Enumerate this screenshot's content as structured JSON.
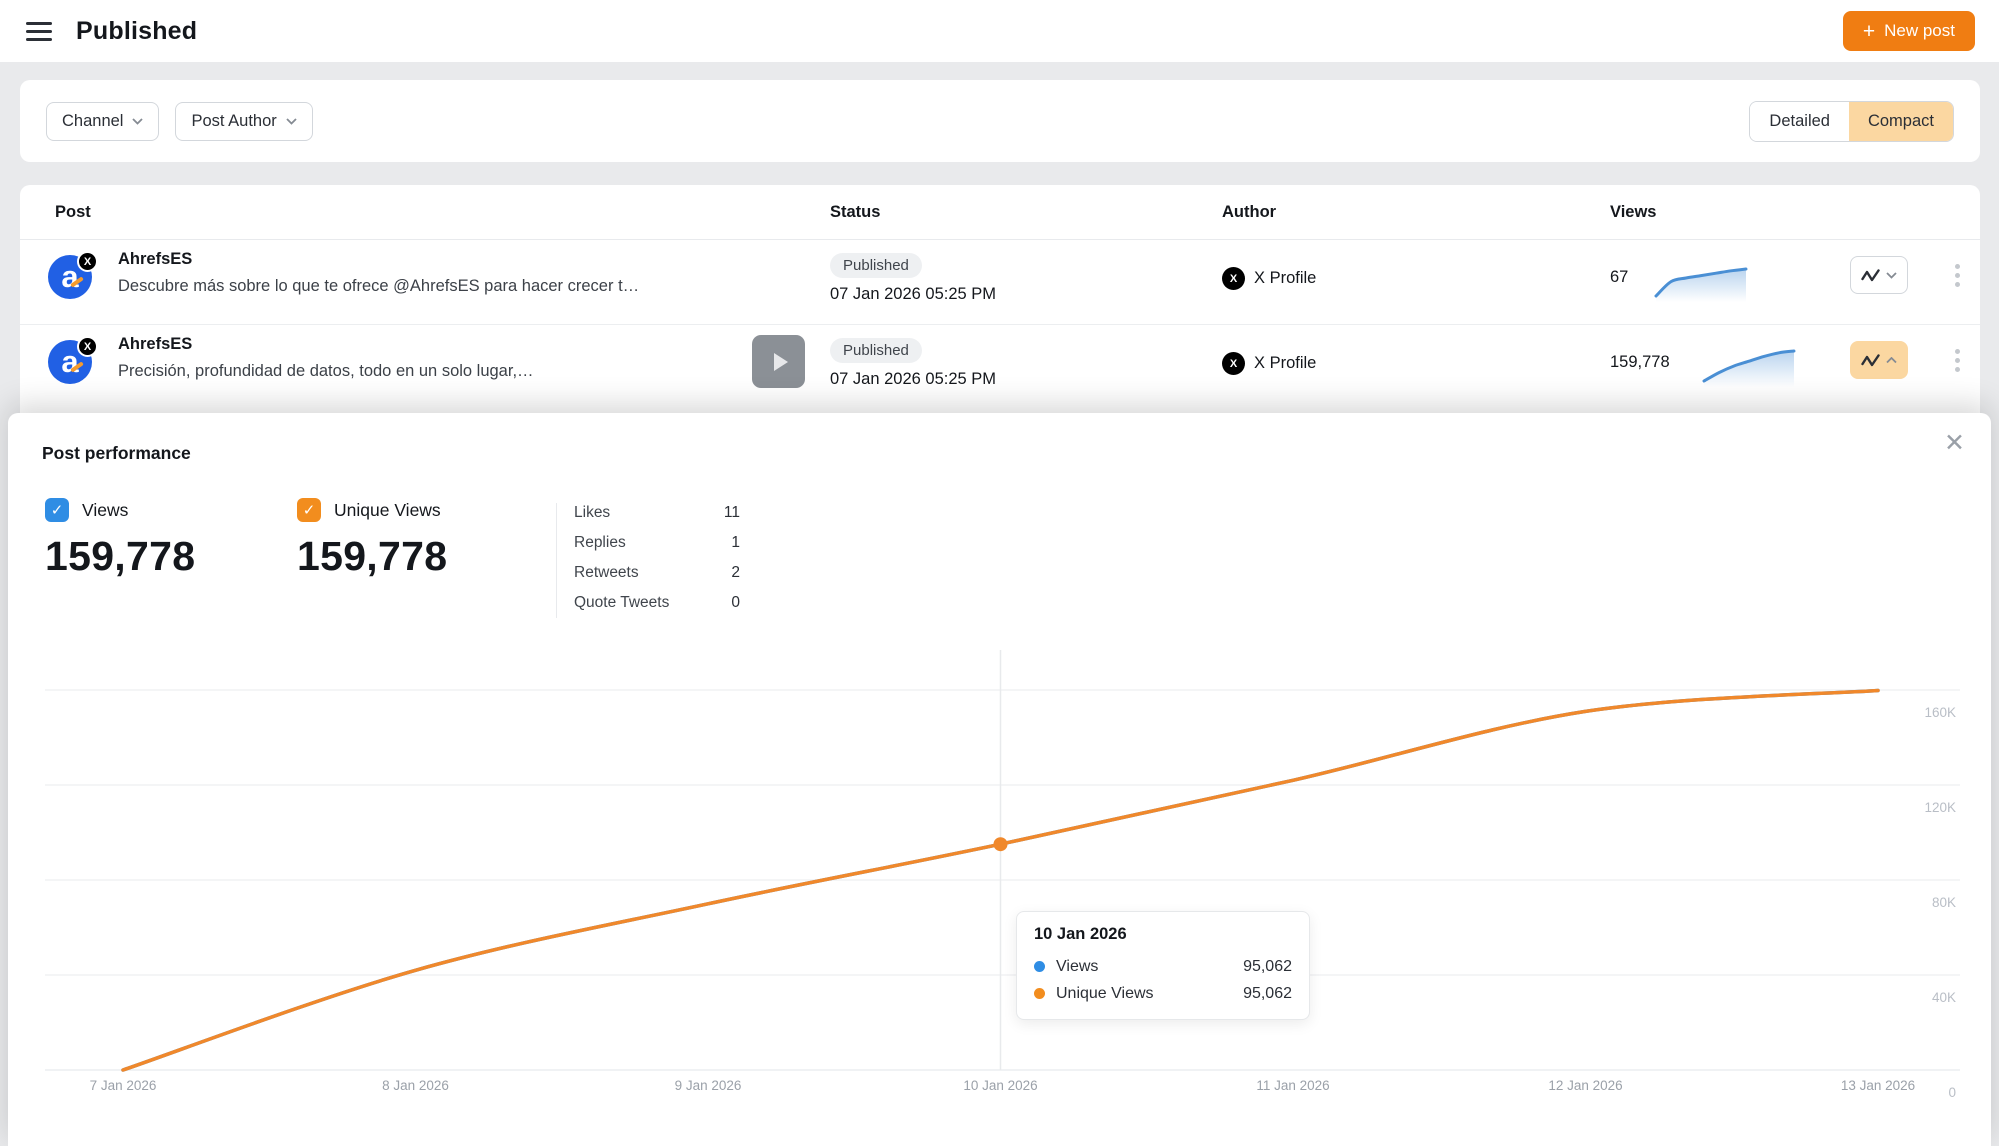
{
  "header": {
    "title": "Published",
    "new_post_label": "New post",
    "plus_icon": "+"
  },
  "filters": {
    "channel_label": "Channel",
    "post_author_label": "Post Author",
    "view_toggle": {
      "detailed": "Detailed",
      "compact": "Compact",
      "selected": "Compact"
    }
  },
  "table": {
    "columns": {
      "post": "Post",
      "status": "Status",
      "author": "Author",
      "views": "Views"
    },
    "rows": [
      {
        "name": "AhrefsES",
        "avatar_letter": "a",
        "badge": "X",
        "snippet": "Descubre más sobre lo que te ofrece @AhrefsES para hacer crecer t…",
        "status": "Published",
        "datetime": "07 Jan 2026 05:25 PM",
        "author": "X Profile",
        "author_badge": "X",
        "views": "67",
        "sparkline": [
          0,
          48,
          60,
          68,
          76,
          84,
          90
        ],
        "expanded": false
      },
      {
        "name": "AhrefsES",
        "avatar_letter": "a",
        "badge": "X",
        "snippet": "Precisión, profundidad de datos, todo en un solo lugar,…",
        "status": "Published",
        "datetime": "07 Jan 2026 05:25 PM",
        "author": "X Profile",
        "author_badge": "X",
        "views": "159,778",
        "sparkline": [
          0,
          28,
          50,
          66,
          82,
          94,
          100
        ],
        "expanded": true
      }
    ]
  },
  "panel": {
    "title": "Post performance",
    "close_icon": "✕",
    "metrics": [
      {
        "label": "Views",
        "value": "159,778",
        "color": "#2f8de4",
        "checked": true
      },
      {
        "label": "Unique Views",
        "value": "159,778",
        "color": "#f28d1e",
        "checked": true
      }
    ],
    "stats": [
      {
        "label": "Likes",
        "value": "11"
      },
      {
        "label": "Replies",
        "value": "1"
      },
      {
        "label": "Retweets",
        "value": "2"
      },
      {
        "label": "Quote Tweets",
        "value": "0"
      }
    ],
    "tooltip": {
      "title": "10 Jan 2026",
      "rows": [
        {
          "label": "Views",
          "value": "95,062",
          "color": "blue"
        },
        {
          "label": "Unique Views",
          "value": "95,062",
          "color": "orange"
        }
      ]
    }
  },
  "chart_data": {
    "type": "line",
    "title": "Post performance",
    "x": [
      "7 Jan 2026",
      "8 Jan 2026",
      "9 Jan 2026",
      "10 Jan 2026",
      "11 Jan 2026",
      "12 Jan 2026",
      "13 Jan 2026"
    ],
    "series": [
      {
        "name": "Views",
        "color": "#2f8de4",
        "values": [
          0,
          42000,
          70000,
          95062,
          122000,
          151000,
          159778
        ]
      },
      {
        "name": "Unique Views",
        "color": "#f0882b",
        "values": [
          0,
          42000,
          70000,
          95062,
          122000,
          151000,
          159778
        ]
      }
    ],
    "ylim": [
      0,
      170000
    ],
    "yticks": [
      {
        "label": "160K",
        "value": 160000
      },
      {
        "label": "120K",
        "value": 120000
      },
      {
        "label": "80K",
        "value": 80000
      },
      {
        "label": "40K",
        "value": 40000
      },
      {
        "label": "0",
        "value": 0
      }
    ],
    "grid": "horizontal",
    "legend_position": "none",
    "highlight": {
      "x": "10 Jan 2026",
      "values": [
        95062,
        95062
      ]
    }
  }
}
